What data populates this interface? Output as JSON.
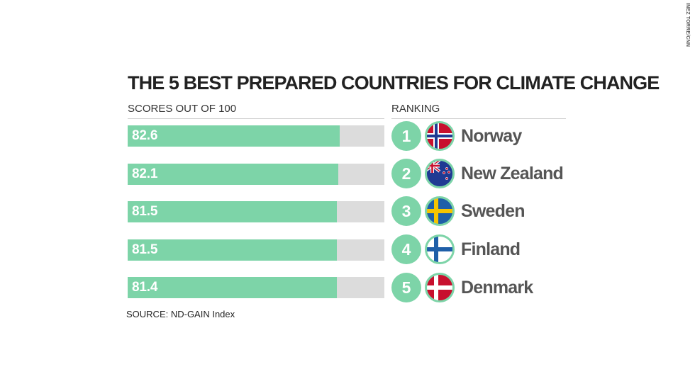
{
  "credit": "INEZ TORRE/CNN",
  "colors": {
    "bar": "#7dd4a8",
    "track": "#dcdcdc",
    "circle": "#7dd4a8"
  },
  "chart_data": {
    "type": "bar",
    "orientation": "horizontal",
    "title": "THE 5 BEST PREPARED COUNTRIES FOR CLIMATE CHANGE",
    "value_header": "SCORES OUT OF 100",
    "rank_header": "RANKING",
    "xlim": [
      0,
      100
    ],
    "categories": [
      "Norway",
      "New Zealand",
      "Sweden",
      "Finland",
      "Denmark"
    ],
    "values": [
      82.6,
      82.1,
      81.5,
      81.5,
      81.4
    ],
    "value_labels": [
      "82.6",
      "82.1",
      "81.5",
      "81.5",
      "81.4"
    ],
    "ranks": [
      "1",
      "2",
      "3",
      "4",
      "5"
    ],
    "flags": [
      "norway-flag-icon",
      "new-zealand-flag-icon",
      "sweden-flag-icon",
      "finland-flag-icon",
      "denmark-flag-icon"
    ],
    "source": "SOURCE: ND-GAIN Index"
  }
}
